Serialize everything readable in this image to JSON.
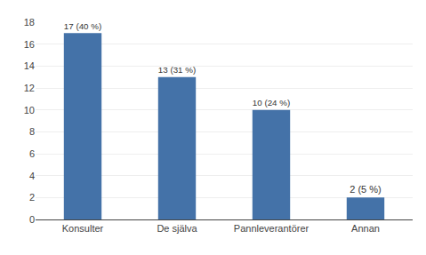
{
  "chart_data": {
    "type": "bar",
    "categories": [
      "Konsulter",
      "De själva",
      "Pannleverantörer",
      "Annan"
    ],
    "values": [
      17,
      13,
      10,
      2
    ],
    "value_labels": [
      "17 (40 %)",
      "13 (31 %)",
      "10 (24 %)",
      "2 (5 %)"
    ],
    "data_labels": true,
    "color": "#4472a8",
    "ylim": [
      0,
      18
    ],
    "yticks": [
      0,
      2,
      4,
      6,
      8,
      10,
      12,
      14,
      16,
      18
    ],
    "grid": true
  }
}
